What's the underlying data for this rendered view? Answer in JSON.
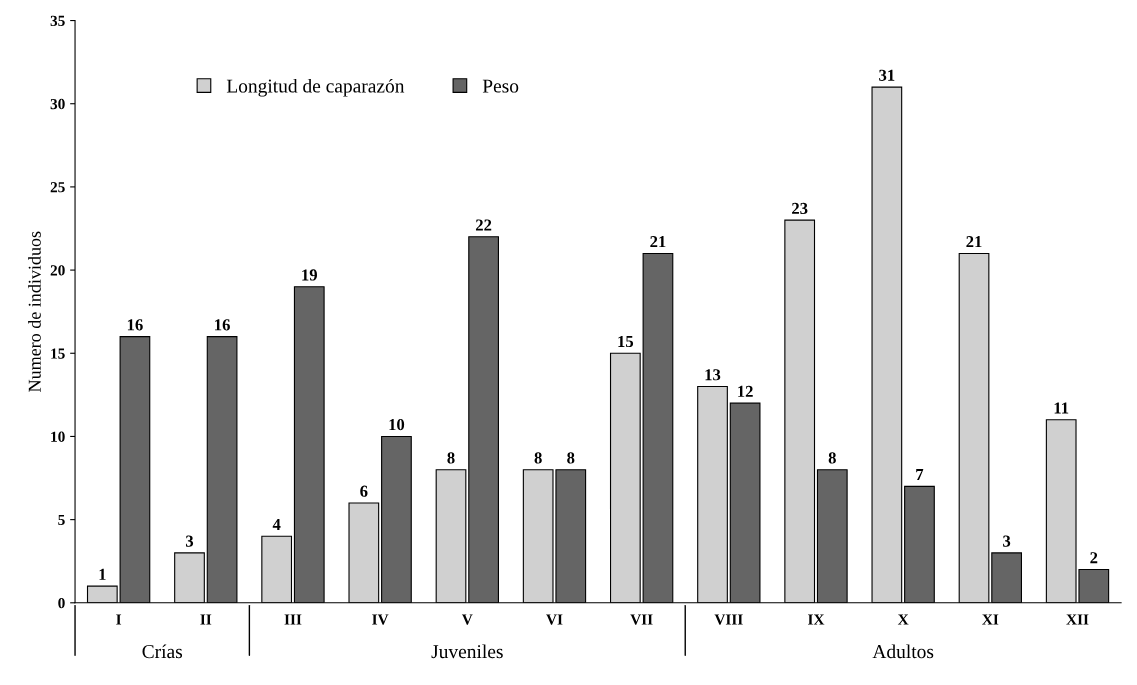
{
  "chart_data": {
    "type": "bar",
    "ylabel": "Numero de individuos",
    "categories": [
      "I",
      "II",
      "III",
      "IV",
      "V",
      "VI",
      "VII",
      "VIII",
      "IX",
      "X",
      "XI",
      "XII"
    ],
    "series": [
      {
        "name": "Longitud de caparazón",
        "color": "#d0d0d0",
        "values": [
          1,
          3,
          4,
          6,
          8,
          8,
          15,
          13,
          23,
          31,
          21,
          11
        ]
      },
      {
        "name": "Peso",
        "color": "#656565",
        "values": [
          16,
          16,
          19,
          10,
          22,
          8,
          21,
          12,
          8,
          7,
          3,
          2
        ]
      }
    ],
    "ylim": [
      0,
      35
    ],
    "yticks": [
      0,
      5,
      10,
      15,
      20,
      25,
      30,
      35
    ],
    "data_labels": true,
    "legend": "top left",
    "grid": false,
    "annotations": [
      "Crías",
      "Juveniles",
      "Adultos"
    ]
  }
}
